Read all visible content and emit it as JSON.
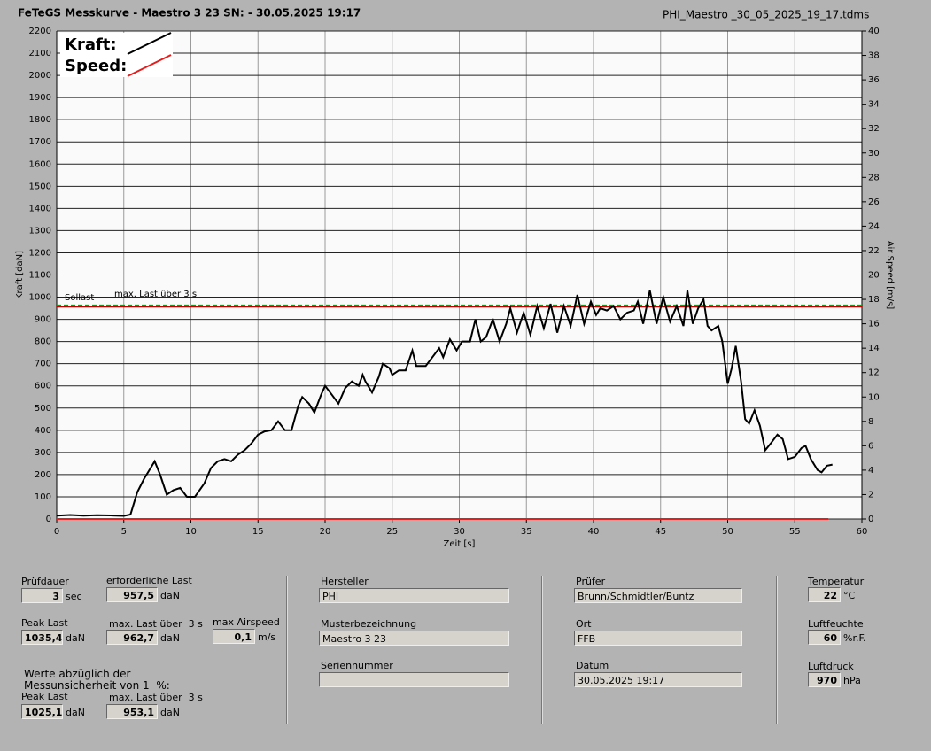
{
  "header": {
    "title": "FeTeGS Messkurve - Maestro 3 23  SN:  - 30.05.2025 19:17",
    "file": "PHI_Maestro _30_05_2025_19_17.tdms"
  },
  "chart_data": {
    "type": "line",
    "xlabel": "Zeit [s]",
    "ylabel": "Kraft [daN]",
    "y2label": "Air Speed [m/s]",
    "xlim": [
      0,
      60
    ],
    "xticks": [
      0,
      5,
      10,
      15,
      20,
      25,
      30,
      35,
      40,
      45,
      50,
      55,
      60
    ],
    "ylim": [
      0,
      2200
    ],
    "yticks": [
      0,
      100,
      200,
      300,
      400,
      500,
      600,
      700,
      800,
      900,
      1000,
      1100,
      1200,
      1300,
      1400,
      1500,
      1600,
      1700,
      1800,
      1900,
      2000,
      2100,
      2200
    ],
    "y2lim": [
      0,
      40
    ],
    "y2ticks": [
      0,
      2,
      4,
      6,
      8,
      10,
      12,
      14,
      16,
      18,
      20,
      22,
      24,
      26,
      28,
      30,
      32,
      34,
      36,
      38,
      40
    ],
    "grid": true,
    "legend": "top-left",
    "series": [
      {
        "name": "Kraft:",
        "color": "#000000",
        "x": [
          0,
          1,
          2,
          3,
          4,
          5,
          5.5,
          6,
          6.5,
          7,
          7.3,
          7.7,
          8.2,
          8.7,
          9.2,
          9.7,
          10.3,
          11,
          11.5,
          12,
          12.5,
          13,
          13.5,
          14,
          14.5,
          15,
          15.5,
          16,
          16.5,
          17,
          17.5,
          18,
          18.3,
          18.8,
          19.2,
          19.7,
          20,
          20.5,
          21,
          21.5,
          22,
          22.5,
          22.8,
          23,
          23.5,
          24,
          24.3,
          24.8,
          25,
          25.5,
          26,
          26.5,
          26.8,
          27.5,
          28,
          28.5,
          28.8,
          29.3,
          29.8,
          30.2,
          30.8,
          31.2,
          31.6,
          32,
          32.5,
          33,
          33.5,
          33.8,
          34.3,
          34.8,
          35.3,
          35.8,
          36.3,
          36.8,
          37.3,
          37.8,
          38.3,
          38.8,
          39.3,
          39.8,
          40.2,
          40.5,
          41,
          41.5,
          42,
          42.5,
          43,
          43.3,
          43.7,
          44.2,
          44.7,
          45.2,
          45.7,
          46.2,
          46.7,
          47,
          47.4,
          47.8,
          48.2,
          48.5,
          48.8,
          49.3,
          49.6,
          50,
          50.3,
          50.6,
          51,
          51.3,
          51.6,
          52,
          52.4,
          52.8,
          53.2,
          53.7,
          54.1,
          54.5,
          55,
          55.5,
          55.8,
          56.2,
          56.7,
          57,
          57.4,
          57.8
        ],
        "values": [
          15,
          18,
          15,
          17,
          16,
          14,
          20,
          120,
          180,
          230,
          260,
          200,
          110,
          130,
          140,
          100,
          100,
          160,
          230,
          260,
          270,
          260,
          290,
          310,
          340,
          380,
          395,
          400,
          440,
          400,
          400,
          510,
          550,
          520,
          480,
          560,
          600,
          560,
          520,
          590,
          620,
          600,
          650,
          620,
          570,
          640,
          700,
          680,
          650,
          670,
          670,
          760,
          690,
          690,
          730,
          770,
          730,
          810,
          760,
          800,
          800,
          900,
          800,
          820,
          900,
          800,
          880,
          950,
          840,
          930,
          830,
          960,
          860,
          970,
          840,
          960,
          870,
          1010,
          880,
          980,
          920,
          950,
          940,
          960,
          900,
          930,
          940,
          980,
          880,
          1030,
          880,
          1000,
          890,
          960,
          870,
          1030,
          880,
          950,
          990,
          870,
          850,
          870,
          800,
          610,
          680,
          780,
          620,
          450,
          430,
          490,
          420,
          310,
          340,
          380,
          360,
          270,
          280,
          320,
          330,
          270,
          220,
          210,
          240,
          245
        ]
      },
      {
        "name": "Speed:",
        "color": "#e02020",
        "axis": "y2",
        "x": [
          0,
          57.5
        ],
        "values": [
          0,
          0
        ]
      }
    ],
    "reference_lines": [
      {
        "label": "Sollast",
        "value": 957.5,
        "color": "#c00000"
      },
      {
        "label": "max. Last über  3 s",
        "value": 962.7,
        "color": "#2e8b2e"
      }
    ]
  },
  "fields": [
    {
      "label": "Prüfdauer",
      "value": "3",
      "unit": "sec"
    },
    {
      "label": "erforderliche Last",
      "value": "957,5",
      "unit": "daN"
    },
    {
      "label": "Peak Last",
      "value": "1035,4",
      "unit": "daN"
    },
    {
      "label": "max. Last über  3 s",
      "value": "962,7",
      "unit": "daN"
    },
    {
      "label": "max Airspeed",
      "value": "0,1",
      "unit": "m/s"
    }
  ],
  "corrected": {
    "note": [
      "Werte abzüglich der",
      "Messunsicherheit von 1  %:"
    ],
    "fields": [
      {
        "label": "Peak Last",
        "value": "1025,1",
        "unit": "daN"
      },
      {
        "label": "max. Last über  3 s",
        "value": "953,1",
        "unit": "daN"
      }
    ]
  },
  "info": [
    {
      "label": "Hersteller",
      "value": "PHI"
    },
    {
      "label": "Musterbezeichnung",
      "value": "Maestro 3 23"
    },
    {
      "label": "Seriennummer"
    },
    {
      "label": "Prüfer",
      "value": "Brunn/Schmidtler/Buntz"
    },
    {
      "label": "Ort",
      "value": "FFB"
    },
    {
      "label": "Datum",
      "value": "30.05.2025 19:17"
    }
  ],
  "ambient": [
    {
      "label": "Temperatur",
      "value": "22",
      "unit": "°C"
    },
    {
      "label": "Luftfeuchte",
      "value": "60",
      "unit": "%r.F."
    },
    {
      "label": "Luftdruck",
      "value": "970",
      "unit": "hPa"
    }
  ]
}
